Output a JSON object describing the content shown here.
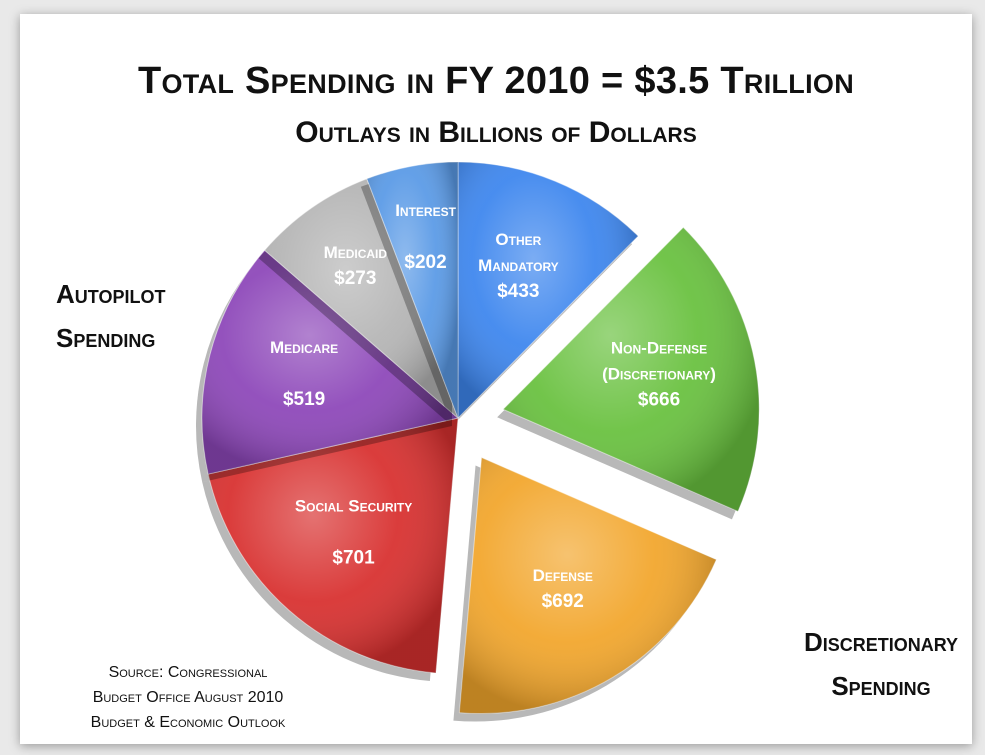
{
  "chart_data": {
    "type": "pie",
    "title": "Total Spending in FY 2010 = $3.5 Trillion",
    "subtitle": "Outlays in Billions of Dollars",
    "unit": "Billions of Dollars",
    "slices": [
      {
        "label": "Other Mandatory",
        "value": 433,
        "value_label": "$433",
        "color": "#3d86ee",
        "exploded": false
      },
      {
        "label": "Non-Defense (Discretionary)",
        "value": 666,
        "value_label": "$666",
        "color": "#69c13f",
        "exploded": true
      },
      {
        "label": "Defense",
        "value": 692,
        "value_label": "$692",
        "color": "#f2a62c",
        "exploded": true
      },
      {
        "label": "Social Security",
        "value": 701,
        "value_label": "$701",
        "color": "#d8302f",
        "exploded": false
      },
      {
        "label": "Medicare",
        "value": 519,
        "value_label": "$519",
        "color": "#8d47b9",
        "exploded": false
      },
      {
        "label": "Medicaid",
        "value": 273,
        "value_label": "$273",
        "color": "#b5b5b5",
        "exploded": false
      },
      {
        "label": "Interest",
        "value": 202,
        "value_label": "$202",
        "color": "#5a9ae6",
        "exploded": false
      }
    ],
    "annotations": {
      "autopilot": [
        "Autopilot",
        "Spending"
      ],
      "discretionary": [
        "Discretionary",
        "Spending"
      ],
      "source": [
        "Source: Congressional",
        "Budget Office August 2010",
        "Budget & Economic Outlook"
      ]
    }
  }
}
